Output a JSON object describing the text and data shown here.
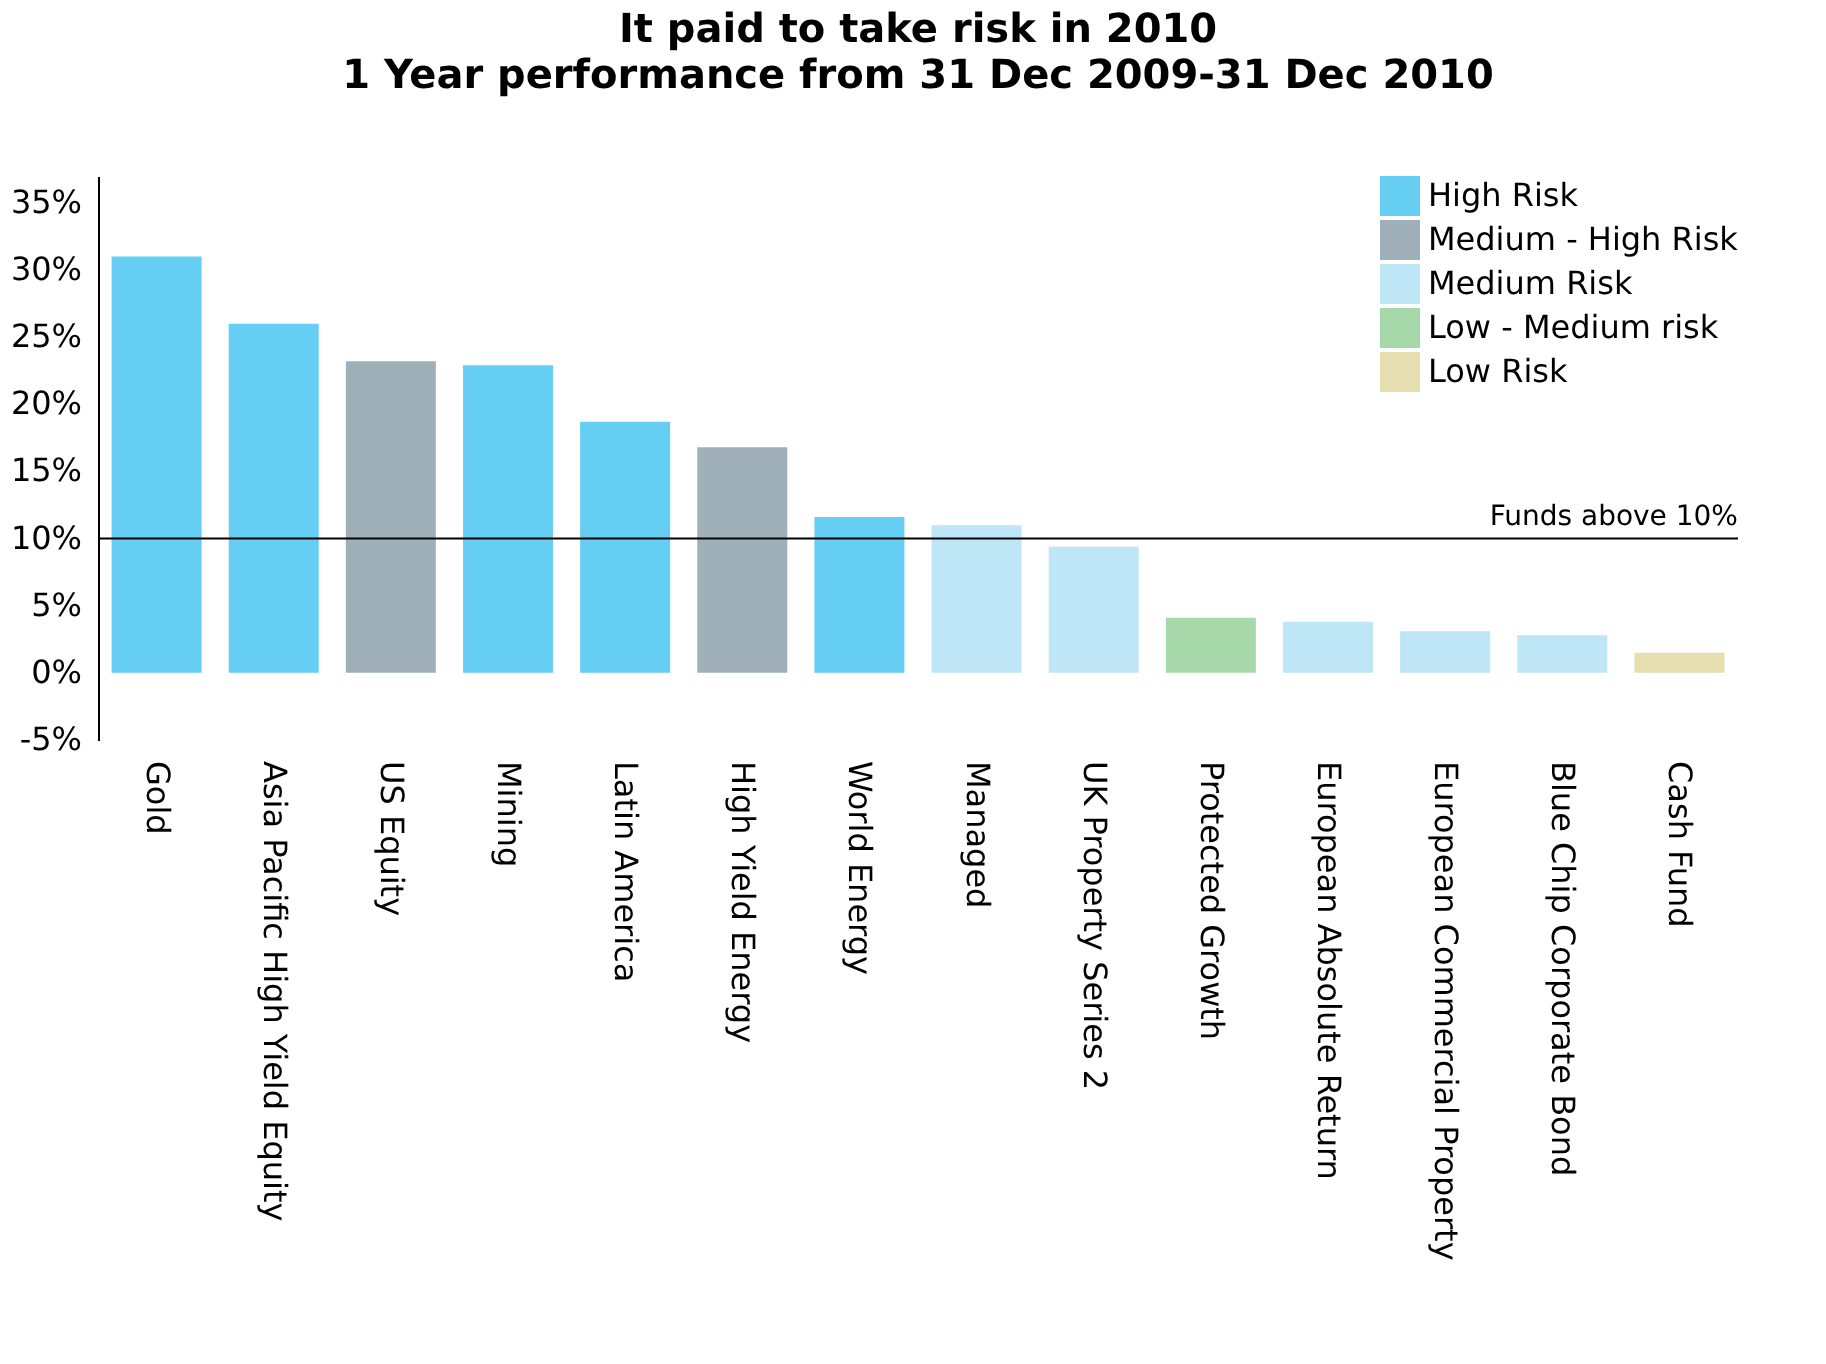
{
  "chart_data": {
    "type": "bar",
    "title": "It paid to take risk in 2010",
    "subtitle": "1 Year performance from 31 Dec 2009-31 Dec 2010",
    "categories": [
      "Gold",
      "Asia Pacific High Yield Equity",
      "US Equity",
      "Mining",
      "Latin America",
      "High Yield Energy",
      "World Energy",
      "Managed",
      "UK Property Series 2",
      "Protected Growth",
      "European Absolute Return",
      "European Commercial Property",
      "Blue Chip Corporate Bond",
      "Cash Fund"
    ],
    "series": [
      {
        "name": "High Risk",
        "color": "#66cdf3",
        "values": [
          31.0,
          26.0,
          null,
          22.9,
          18.7,
          null,
          11.6,
          null,
          null,
          null,
          null,
          null,
          null,
          null
        ]
      },
      {
        "name": "Medium - High Risk",
        "color": "#9fb0ba",
        "values": [
          null,
          null,
          23.2,
          null,
          null,
          16.8,
          null,
          null,
          null,
          null,
          null,
          null,
          null,
          null
        ]
      },
      {
        "name": "Medium Risk",
        "color": "#bee6f6",
        "values": [
          null,
          null,
          null,
          null,
          null,
          null,
          null,
          11.0,
          9.4,
          null,
          3.8,
          3.1,
          2.8,
          null
        ]
      },
      {
        "name": "Low - Medium risk",
        "color": "#a6d8a9",
        "values": [
          null,
          null,
          null,
          null,
          null,
          null,
          null,
          null,
          null,
          4.1,
          null,
          null,
          null,
          null
        ]
      },
      {
        "name": "Low Risk",
        "color": "#e6ddb0",
        "values": [
          null,
          null,
          null,
          null,
          null,
          null,
          null,
          null,
          null,
          null,
          null,
          null,
          null,
          1.5
        ]
      }
    ],
    "ylim": [
      -5,
      37
    ],
    "yticks": [
      {
        "value": -5,
        "label": "-5%"
      },
      {
        "value": 0,
        "label": "0%"
      },
      {
        "value": 5,
        "label": "5%"
      },
      {
        "value": 10,
        "label": "10%"
      },
      {
        "value": 15,
        "label": "15%"
      },
      {
        "value": 20,
        "label": "20%"
      },
      {
        "value": 25,
        "label": "25%"
      },
      {
        "value": 30,
        "label": "30%"
      },
      {
        "value": 35,
        "label": "35%"
      }
    ],
    "ref_lines": [
      {
        "axis": "y",
        "value": 10,
        "label": "Funds above 10%",
        "color": "#000000"
      }
    ],
    "legend": "top right",
    "grid": false
  }
}
